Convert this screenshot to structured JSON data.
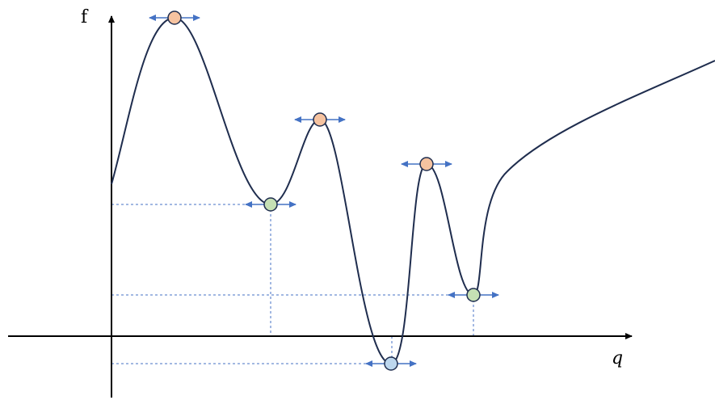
{
  "axes": {
    "y_label": "f",
    "x_label": "q",
    "color": "#000000"
  },
  "curve": {
    "color": "#1f2d4e"
  },
  "colors": {
    "maximum_fill": "#f6c3a0",
    "minimum_fill": "#c5e0b4",
    "global_minimum_fill": "#bdd7ee",
    "point_stroke": "#1f2d4e",
    "arrow": "#4472c4",
    "guide": "#4472c4"
  },
  "stationary_points": [
    {
      "kind": "local-maximum"
    },
    {
      "kind": "local-minimum"
    },
    {
      "kind": "local-maximum"
    },
    {
      "kind": "global-minimum"
    },
    {
      "kind": "local-maximum"
    },
    {
      "kind": "local-minimum"
    }
  ],
  "guides": {
    "style": "dashed"
  }
}
